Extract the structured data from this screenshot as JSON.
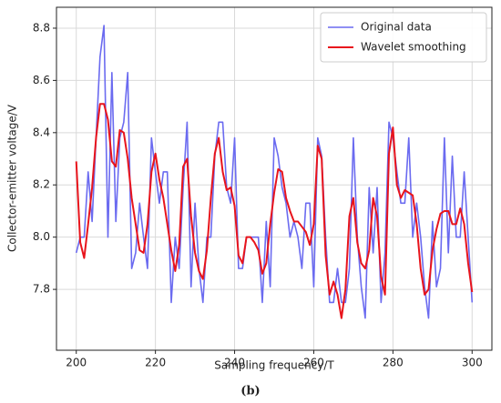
{
  "chart_data": {
    "type": "line",
    "xlabel": "Sampling frequency/T",
    "ylabel": "Collector-emitter voltage/V",
    "caption": "(b)",
    "x": [
      200,
      201,
      202,
      203,
      204,
      205,
      206,
      207,
      208,
      209,
      210,
      211,
      212,
      213,
      214,
      215,
      216,
      217,
      218,
      219,
      220,
      221,
      222,
      223,
      224,
      225,
      226,
      227,
      228,
      229,
      230,
      231,
      232,
      233,
      234,
      235,
      236,
      237,
      238,
      239,
      240,
      241,
      242,
      243,
      244,
      245,
      246,
      247,
      248,
      249,
      250,
      251,
      252,
      253,
      254,
      255,
      256,
      257,
      258,
      259,
      260,
      261,
      262,
      263,
      264,
      265,
      266,
      267,
      268,
      269,
      270,
      271,
      272,
      273,
      274,
      275,
      276,
      277,
      278,
      279,
      280,
      281,
      282,
      283,
      284,
      285,
      286,
      287,
      288,
      289,
      290,
      291,
      292,
      293,
      294,
      295,
      296,
      297,
      298,
      299,
      300
    ],
    "series": [
      {
        "name": "Original data",
        "color": "#6b6bf0",
        "width": 1.6,
        "values": [
          7.94,
          8.0,
          8.0,
          8.25,
          8.06,
          8.38,
          8.69,
          8.81,
          8.0,
          8.63,
          8.06,
          8.38,
          8.44,
          8.63,
          7.88,
          7.94,
          8.13,
          8.0,
          7.88,
          8.38,
          8.25,
          8.13,
          8.25,
          8.25,
          7.75,
          8.0,
          7.88,
          8.19,
          8.44,
          7.81,
          8.13,
          7.88,
          7.75,
          8.0,
          8.0,
          8.31,
          8.44,
          8.44,
          8.19,
          8.13,
          8.38,
          7.88,
          7.88,
          8.0,
          8.0,
          8.0,
          8.0,
          7.75,
          8.06,
          7.81,
          8.38,
          8.31,
          8.19,
          8.13,
          8.0,
          8.06,
          8.0,
          7.88,
          8.13,
          8.13,
          7.81,
          8.38,
          8.31,
          8.0,
          7.75,
          7.75,
          7.88,
          7.75,
          7.75,
          7.88,
          8.38,
          8.0,
          7.81,
          7.69,
          8.19,
          7.94,
          8.19,
          7.75,
          7.94,
          8.44,
          8.38,
          8.25,
          8.13,
          8.13,
          8.38,
          8.0,
          8.13,
          8.0,
          7.81,
          7.69,
          8.06,
          7.81,
          7.88,
          8.38,
          7.94,
          8.31,
          8.0,
          8.0,
          8.25,
          8.0,
          7.75
        ]
      },
      {
        "name": "Wavelet smoothing",
        "color": "#e8141c",
        "width": 2,
        "values": [
          8.29,
          7.98,
          7.92,
          8.05,
          8.19,
          8.38,
          8.51,
          8.51,
          8.45,
          8.29,
          8.27,
          8.41,
          8.4,
          8.3,
          8.15,
          8.05,
          7.95,
          7.94,
          8.05,
          8.25,
          8.32,
          8.22,
          8.15,
          8.05,
          7.95,
          7.87,
          7.97,
          8.27,
          8.3,
          8.08,
          7.94,
          7.87,
          7.84,
          7.95,
          8.15,
          8.32,
          8.38,
          8.25,
          8.18,
          8.19,
          8.12,
          7.93,
          7.9,
          8.0,
          8.0,
          7.98,
          7.95,
          7.86,
          7.9,
          8.05,
          8.17,
          8.26,
          8.25,
          8.15,
          8.1,
          8.06,
          8.06,
          8.04,
          8.02,
          7.97,
          8.05,
          8.35,
          8.3,
          7.93,
          7.78,
          7.83,
          7.78,
          7.69,
          7.8,
          8.08,
          8.15,
          7.98,
          7.9,
          7.88,
          7.95,
          8.15,
          8.08,
          7.85,
          7.78,
          8.32,
          8.42,
          8.2,
          8.15,
          8.18,
          8.17,
          8.16,
          8.05,
          7.88,
          7.78,
          7.8,
          7.95,
          8.03,
          8.09,
          8.1,
          8.1,
          8.05,
          8.05,
          8.11,
          8.05,
          7.9,
          7.79
        ]
      }
    ],
    "xlim": [
      195,
      305
    ],
    "xticks": [
      200,
      220,
      240,
      260,
      280,
      300
    ],
    "ylim": [
      7.567,
      8.88
    ],
    "yticks": [
      {
        "value": 7.8,
        "label": "7.8"
      },
      {
        "value": 8.0,
        "label": "8.0"
      },
      {
        "value": 8.2,
        "label": "8.2"
      },
      {
        "value": 8.4,
        "label": "8.4"
      },
      {
        "value": 8.6,
        "label": "8.6"
      },
      {
        "value": 8.8,
        "label": "8.8"
      }
    ],
    "grid": true,
    "legend": "upper right"
  }
}
